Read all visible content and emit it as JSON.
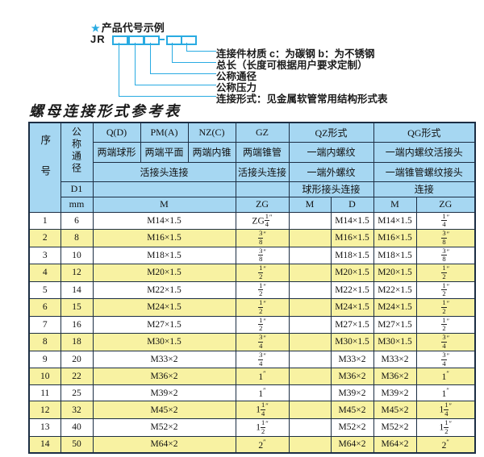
{
  "colors": {
    "accent": "#29abe2",
    "headerblue": "#a6d7f2",
    "rowyellow": "#f8f2a2",
    "border": "#1c2e44"
  },
  "diagram": {
    "title": "产品代号示例",
    "star": "★",
    "prefix": "JR",
    "labels": [
      "连接件材质  c：为碳钢  b：为不锈钢",
      "总长（长度可根据用户要求定制）",
      "公称通径",
      "公称压力",
      "连接形式：见金属软管常用结构形式表"
    ]
  },
  "table": {
    "title": "螺母连接形式参考表",
    "unit": "″",
    "header": {
      "seq": "序号",
      "dn": "公称通径",
      "d1": "D1",
      "mm": "mm",
      "col_q": "Q(D)",
      "col_pm": "PM(A)",
      "col_nz": "NZ(C)",
      "col_gz": "GZ",
      "col_qz": "QZ形式",
      "col_qg": "QG形式",
      "q_desc": "两端球形",
      "pm_desc": "两端平面",
      "nz_desc": "两端内锥",
      "gz_desc": "两端锥管",
      "qz_desc1": "一端内螺纹",
      "qg_desc1": "一端内螺纹活接头",
      "union_conn": "活接头连接",
      "gz_conn": "活接头连接",
      "qz_desc2": "一端外螺纹",
      "qg_desc2": "一端锥管螺纹接头",
      "qz_conn": "球形接头连接",
      "qg_conn": "连接",
      "m": "M",
      "zg": "ZG",
      "d": "D"
    },
    "rows": [
      {
        "no": "1",
        "dn": "6",
        "m": "M14×1.5",
        "gz": {
          "p": "ZG",
          "n": "1",
          "d": "4"
        },
        "qzm": "",
        "qzd": "M14×1.5",
        "qgm": "M14×1.5",
        "qgzg": {
          "n": "1",
          "d": "4"
        }
      },
      {
        "no": "2",
        "dn": "8",
        "m": "M16×1.5",
        "gz": {
          "n": "3",
          "d": "8"
        },
        "qzm": "",
        "qzd": "M16×1.5",
        "qgm": "M16×1.5",
        "qgzg": {
          "n": "3",
          "d": "8"
        }
      },
      {
        "no": "3",
        "dn": "10",
        "m": "M18×1.5",
        "gz": {
          "n": "3",
          "d": "8"
        },
        "qzm": "",
        "qzd": "M18×1.5",
        "qgm": "M18×1.5",
        "qgzg": {
          "n": "3",
          "d": "8"
        }
      },
      {
        "no": "4",
        "dn": "12",
        "m": "M20×1.5",
        "gz": {
          "n": "1",
          "d": "2"
        },
        "qzm": "",
        "qzd": "M20×1.5",
        "qgm": "M20×1.5",
        "qgzg": {
          "n": "1",
          "d": "2"
        }
      },
      {
        "no": "5",
        "dn": "14",
        "m": "M22×1.5",
        "gz": {
          "n": "1",
          "d": "2"
        },
        "qzm": "",
        "qzd": "M22×1.5",
        "qgm": "M22×1.5",
        "qgzg": {
          "n": "1",
          "d": "2"
        }
      },
      {
        "no": "6",
        "dn": "15",
        "m": "M24×1.5",
        "gz": {
          "n": "1",
          "d": "2"
        },
        "qzm": "",
        "qzd": "M24×1.5",
        "qgm": "M24×1.5",
        "qgzg": {
          "n": "1",
          "d": "2"
        }
      },
      {
        "no": "7",
        "dn": "16",
        "m": "M27×1.5",
        "gz": {
          "n": "1",
          "d": "2"
        },
        "qzm": "",
        "qzd": "M27×1.5",
        "qgm": "M27×1.5",
        "qgzg": {
          "n": "1",
          "d": "2"
        }
      },
      {
        "no": "8",
        "dn": "18",
        "m": "M30×1.5",
        "gz": {
          "n": "3",
          "d": "4"
        },
        "qzm": "",
        "qzd": "M30×1.5",
        "qgm": "M30×1.5",
        "qgzg": {
          "n": "3",
          "d": "4"
        }
      },
      {
        "no": "9",
        "dn": "20",
        "m": "M33×2",
        "gz": {
          "n": "3",
          "d": "4"
        },
        "qzm": "",
        "qzd": "M33×2",
        "qgm": "M33×2",
        "qgzg": {
          "n": "3",
          "d": "4"
        }
      },
      {
        "no": "10",
        "dn": "22",
        "m": "M36×2",
        "gz": {
          "p": "1"
        },
        "qzm": "",
        "qzd": "M36×2",
        "qgm": "M36×2",
        "qgzg": {
          "p": "1"
        }
      },
      {
        "no": "11",
        "dn": "25",
        "m": "M39×2",
        "gz": {
          "p": "1"
        },
        "qzm": "",
        "qzd": "M39×2",
        "qgm": "M39×2",
        "qgzg": {
          "p": "1"
        }
      },
      {
        "no": "12",
        "dn": "32",
        "m": "M45×2",
        "gz": {
          "p": "1",
          "n": "1",
          "d": "4"
        },
        "qzm": "",
        "qzd": "M45×2",
        "qgm": "M45×2",
        "qgzg": {
          "p": "1",
          "n": "1",
          "d": "4"
        }
      },
      {
        "no": "13",
        "dn": "40",
        "m": "M52×2",
        "gz": {
          "p": "1",
          "n": "1",
          "d": "2"
        },
        "qzm": "",
        "qzd": "M52×2",
        "qgm": "M52×2",
        "qgzg": {
          "p": "1",
          "n": "1",
          "d": "2"
        }
      },
      {
        "no": "14",
        "dn": "50",
        "m": "M64×2",
        "gz": {
          "p": "2"
        },
        "qzm": "",
        "qzd": "M64×2",
        "qgm": "M64×2",
        "qgzg": {
          "p": "2"
        }
      }
    ]
  },
  "diagram_layout_note": ""
}
